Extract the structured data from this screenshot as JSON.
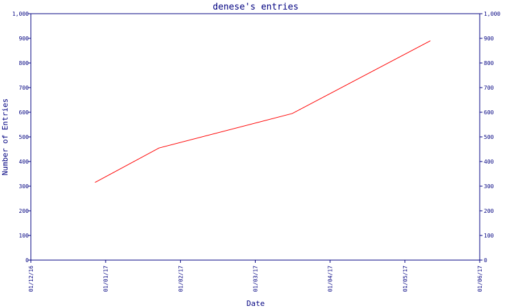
{
  "chart_data": {
    "type": "line",
    "title": "denese's entries",
    "xlabel": "Date",
    "ylabel": "Number of Entries",
    "x_ticks": [
      "01/12/16",
      "01/01/17",
      "01/02/17",
      "01/03/17",
      "01/04/17",
      "01/05/17",
      "01/06/17"
    ],
    "xlim": [
      "2016-12-01",
      "2017-06-01"
    ],
    "ylim": [
      0,
      1000
    ],
    "y_ticks": [
      "0",
      "100",
      "200",
      "300",
      "400",
      "500",
      "600",
      "700",
      "800",
      "900",
      "1,000"
    ],
    "grid": false,
    "legend": "none",
    "series": [
      {
        "color": "#ff0000",
        "x": [
          "2016-12-27",
          "2017-01-22",
          "2017-03-17",
          "2017-05-12"
        ],
        "y": [
          315,
          455,
          595,
          890
        ]
      }
    ]
  },
  "colors": {
    "axis": "#000080",
    "line": "#ff0000",
    "background": "#ffffff"
  }
}
